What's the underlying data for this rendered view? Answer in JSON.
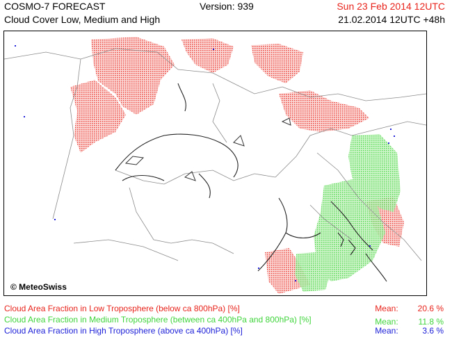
{
  "header": {
    "title_line1": "COSMO-7 FORECAST",
    "title_line2": "Cloud Cover Low, Medium and High",
    "version": "Version: 939",
    "valid_time": "Sun 23 Feb 2014 12UTC",
    "run_time": "21.02.2014 12UTC +48h"
  },
  "map": {
    "copyright": "© MeteoSwiss"
  },
  "legend": [
    {
      "label": "Cloud Area Fraction in Low Troposphere (below ca 800hPa) [%]",
      "mean_label": "Mean:",
      "mean_value": "20.6 %",
      "color": "#e8231b"
    },
    {
      "label": "Cloud Area Fraction in Medium Troposphere (between ca 400hPa and 800hPa) [%]",
      "mean_label": "Mean:",
      "mean_value": "11.8 %",
      "color": "#3fd43b"
    },
    {
      "label": "Cloud Area Fraction in High Troposphere (above ca 400hPa) [%]",
      "mean_label": "Mean:",
      "mean_value": "3.6 %",
      "color": "#1d20d8"
    }
  ],
  "colors": {
    "low_cloud": "#e8231b",
    "low_cloud_fill": "#f4a7a4",
    "medium_cloud": "#3fd43b",
    "medium_cloud_fill": "#a8eba2",
    "high_cloud": "#1d20d8"
  }
}
